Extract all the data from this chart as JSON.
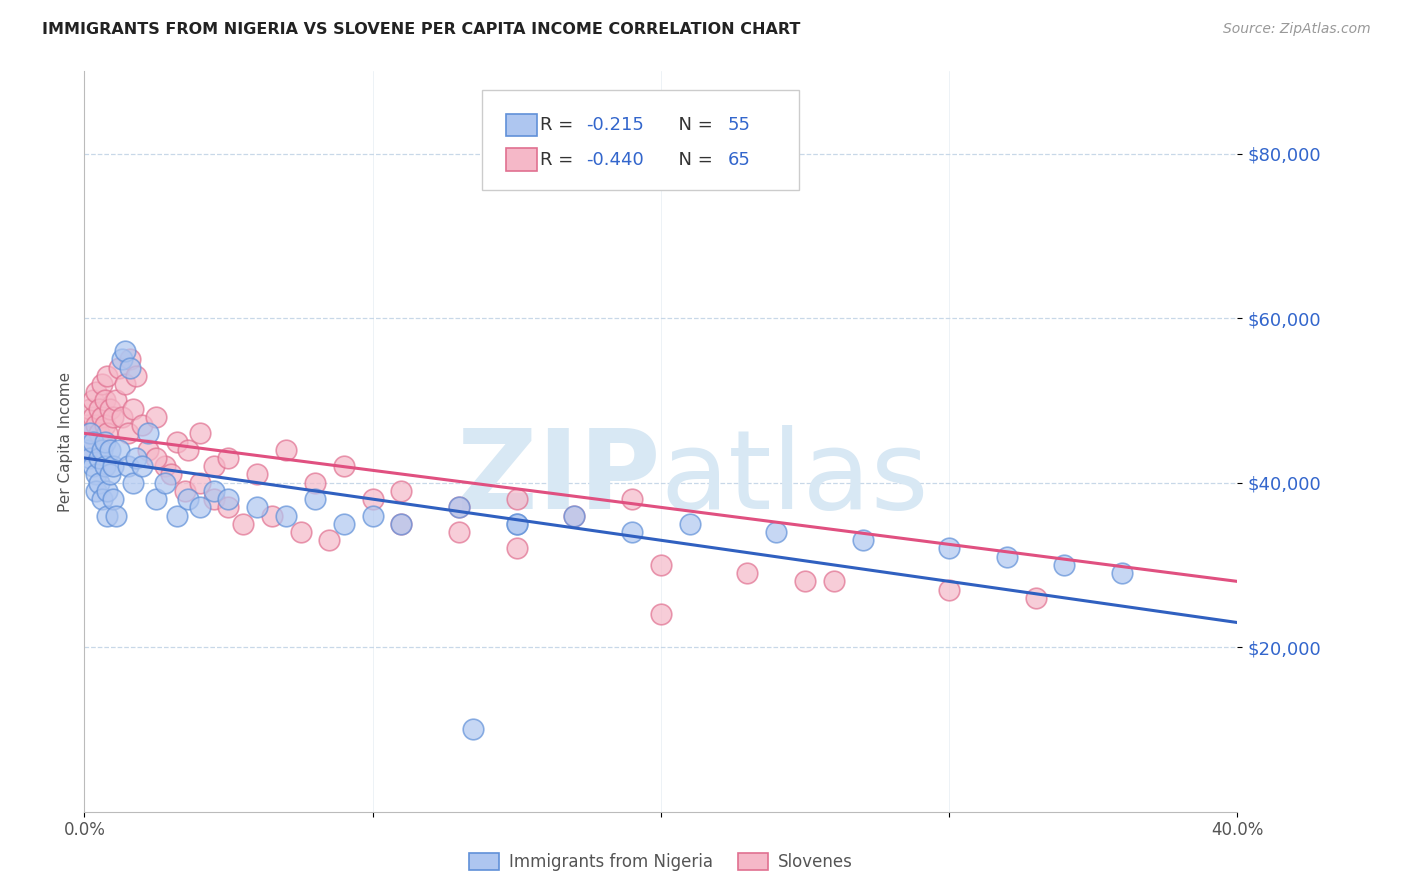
{
  "title": "IMMIGRANTS FROM NIGERIA VS SLOVENE PER CAPITA INCOME CORRELATION CHART",
  "source": "Source: ZipAtlas.com",
  "ylabel": "Per Capita Income",
  "xlim": [
    0.0,
    0.4
  ],
  "ylim": [
    0,
    90000
  ],
  "yticks": [
    20000,
    40000,
    60000,
    80000
  ],
  "ytick_labels": [
    "$20,000",
    "$40,000",
    "$60,000",
    "$80,000"
  ],
  "xticks": [
    0.0,
    0.1,
    0.2,
    0.3,
    0.4
  ],
  "xtick_labels": [
    "0.0%",
    "",
    "",
    "",
    "40.0%"
  ],
  "color_blue_fill": "#aec6f0",
  "color_blue_edge": "#6090d8",
  "color_pink_fill": "#f5b8c8",
  "color_pink_edge": "#e07090",
  "line_blue": "#3060c0",
  "line_pink": "#e05080",
  "watermark_color": "#d8e8f4",
  "blue_label": "Immigrants from Nigeria",
  "pink_label": "Slovenes",
  "nigeria_x": [
    0.001,
    0.002,
    0.002,
    0.003,
    0.003,
    0.004,
    0.004,
    0.005,
    0.005,
    0.006,
    0.006,
    0.007,
    0.007,
    0.008,
    0.008,
    0.009,
    0.009,
    0.01,
    0.01,
    0.011,
    0.012,
    0.013,
    0.014,
    0.015,
    0.016,
    0.017,
    0.018,
    0.02,
    0.022,
    0.025,
    0.028,
    0.032,
    0.036,
    0.04,
    0.045,
    0.05,
    0.06,
    0.07,
    0.08,
    0.09,
    0.1,
    0.11,
    0.13,
    0.15,
    0.17,
    0.19,
    0.21,
    0.24,
    0.27,
    0.3,
    0.32,
    0.34,
    0.36,
    0.135,
    0.15
  ],
  "nigeria_y": [
    44000,
    43000,
    46000,
    42000,
    45000,
    41000,
    39000,
    43000,
    40000,
    44000,
    38000,
    45000,
    42000,
    39000,
    36000,
    44000,
    41000,
    38000,
    42000,
    36000,
    44000,
    55000,
    56000,
    42000,
    54000,
    40000,
    43000,
    42000,
    46000,
    38000,
    40000,
    36000,
    38000,
    37000,
    39000,
    38000,
    37000,
    36000,
    38000,
    35000,
    36000,
    35000,
    37000,
    35000,
    36000,
    34000,
    35000,
    34000,
    33000,
    32000,
    31000,
    30000,
    29000,
    10000,
    35000
  ],
  "slovene_x": [
    0.001,
    0.001,
    0.002,
    0.002,
    0.003,
    0.003,
    0.004,
    0.004,
    0.005,
    0.005,
    0.006,
    0.006,
    0.007,
    0.007,
    0.008,
    0.008,
    0.009,
    0.01,
    0.011,
    0.012,
    0.013,
    0.014,
    0.015,
    0.016,
    0.017,
    0.018,
    0.02,
    0.022,
    0.025,
    0.028,
    0.032,
    0.036,
    0.04,
    0.045,
    0.05,
    0.06,
    0.07,
    0.08,
    0.09,
    0.1,
    0.11,
    0.13,
    0.15,
    0.17,
    0.19,
    0.025,
    0.03,
    0.035,
    0.04,
    0.045,
    0.05,
    0.055,
    0.065,
    0.075,
    0.085,
    0.11,
    0.13,
    0.15,
    0.2,
    0.23,
    0.26,
    0.3,
    0.33,
    0.2,
    0.25
  ],
  "slovene_y": [
    44000,
    47000,
    46000,
    49000,
    48000,
    50000,
    47000,
    51000,
    46000,
    49000,
    48000,
    52000,
    47000,
    50000,
    46000,
    53000,
    49000,
    48000,
    50000,
    54000,
    48000,
    52000,
    46000,
    55000,
    49000,
    53000,
    47000,
    44000,
    48000,
    42000,
    45000,
    44000,
    46000,
    42000,
    43000,
    41000,
    44000,
    40000,
    42000,
    38000,
    39000,
    37000,
    38000,
    36000,
    38000,
    43000,
    41000,
    39000,
    40000,
    38000,
    37000,
    35000,
    36000,
    34000,
    33000,
    35000,
    34000,
    32000,
    30000,
    29000,
    28000,
    27000,
    26000,
    24000,
    28000
  ],
  "blue_line_x": [
    0.0,
    0.4
  ],
  "blue_line_y": [
    43000,
    23000
  ],
  "pink_line_x": [
    0.0,
    0.4
  ],
  "pink_line_y": [
    46000,
    28000
  ]
}
